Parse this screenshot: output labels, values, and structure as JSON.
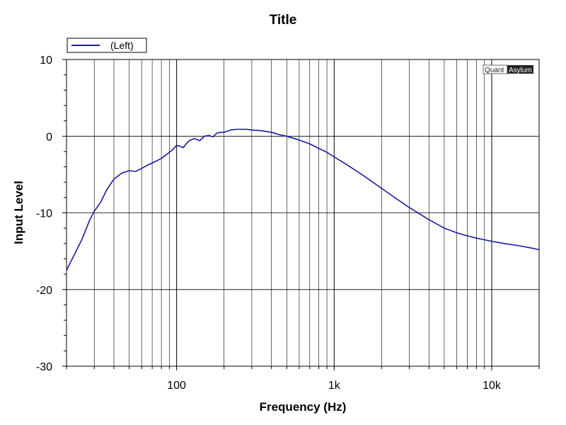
{
  "chart_data": {
    "type": "line",
    "title": "Title",
    "xlabel": "Frequency (Hz)",
    "ylabel": "Input Level",
    "x_scale": "log",
    "xlim": [
      20,
      20000
    ],
    "ylim": [
      -30,
      10
    ],
    "x_ticks": [
      {
        "value": 100,
        "label": "100"
      },
      {
        "value": 1000,
        "label": "1k"
      },
      {
        "value": 10000,
        "label": "10k"
      }
    ],
    "y_ticks": [
      {
        "value": 10,
        "label": "10"
      },
      {
        "value": 0,
        "label": "0"
      },
      {
        "value": -10,
        "label": "-10"
      },
      {
        "value": -20,
        "label": "-20"
      },
      {
        "value": -30,
        "label": "-30"
      }
    ],
    "grid": true,
    "legend": {
      "position": "top-left",
      "entries": [
        "(Left)"
      ]
    },
    "brand": {
      "left": "Quant",
      "right": "Asylum"
    },
    "series": [
      {
        "name": "(Left)",
        "color": "#1a1aa0",
        "x": [
          20,
          22,
          25,
          28,
          30,
          33,
          36,
          40,
          45,
          50,
          55,
          60,
          65,
          70,
          75,
          80,
          85,
          90,
          95,
          100,
          105,
          110,
          115,
          120,
          130,
          140,
          150,
          160,
          170,
          180,
          190,
          200,
          220,
          240,
          260,
          280,
          300,
          350,
          400,
          450,
          500,
          600,
          700,
          800,
          900,
          1000,
          1200,
          1500,
          2000,
          2500,
          3000,
          4000,
          5000,
          6000,
          7000,
          8000,
          10000,
          12000,
          15000,
          18000,
          20000
        ],
        "y": [
          -17.5,
          -15.8,
          -13.5,
          -11.0,
          -9.8,
          -8.6,
          -7.0,
          -5.6,
          -4.8,
          -4.5,
          -4.6,
          -4.2,
          -3.8,
          -3.5,
          -3.2,
          -2.9,
          -2.5,
          -2.1,
          -1.7,
          -1.2,
          -1.3,
          -1.5,
          -1.0,
          -0.6,
          -0.3,
          -0.6,
          0.0,
          0.1,
          -0.1,
          0.4,
          0.5,
          0.5,
          0.8,
          0.9,
          0.9,
          0.9,
          0.8,
          0.7,
          0.5,
          0.2,
          0.0,
          -0.5,
          -1.0,
          -1.6,
          -2.1,
          -2.7,
          -3.7,
          -5.0,
          -6.8,
          -8.2,
          -9.3,
          -10.9,
          -12.0,
          -12.6,
          -13.0,
          -13.3,
          -13.7,
          -14.0,
          -14.3,
          -14.6,
          -14.8
        ]
      }
    ]
  }
}
